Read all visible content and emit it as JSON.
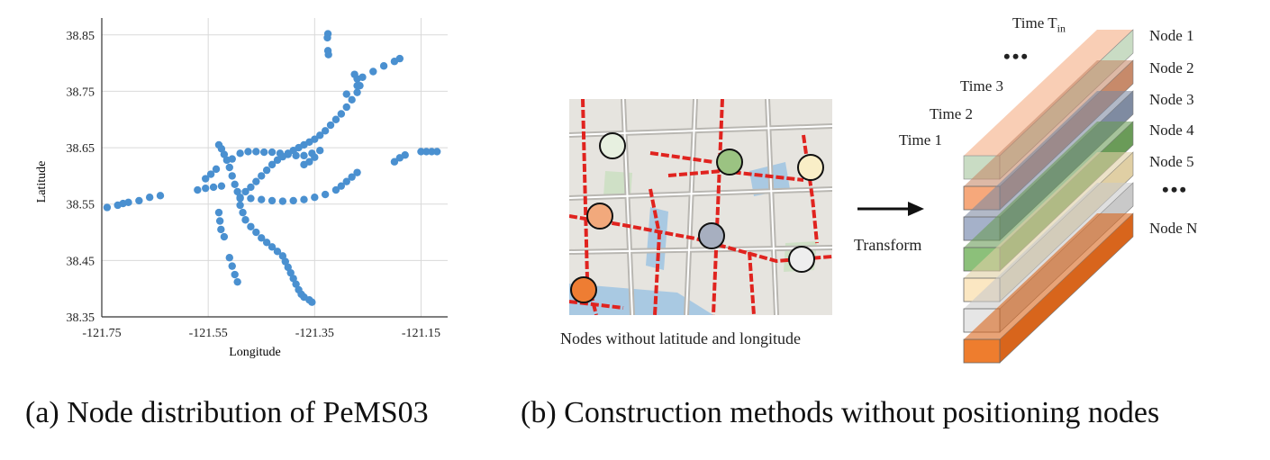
{
  "figure": {
    "caption_a": "(a) Node distribution of PeMS03",
    "caption_b": "(b) Construction methods without positioning nodes"
  },
  "chart_data": {
    "type": "scatter",
    "title": "",
    "xlabel": "Longitude",
    "ylabel": "Latitude",
    "xlim": [
      -121.75,
      -121.1
    ],
    "ylim": [
      38.35,
      38.88
    ],
    "xticks": [
      "-121.75",
      "-121.55",
      "-121.35",
      "-121.15"
    ],
    "xtick_values": [
      -121.75,
      -121.55,
      -121.35,
      -121.15
    ],
    "yticks": [
      "38.35",
      "38.45",
      "38.55",
      "38.65",
      "38.75",
      "38.85"
    ],
    "ytick_values": [
      38.35,
      38.45,
      38.55,
      38.65,
      38.75,
      38.85
    ],
    "grid": true,
    "color": "#4a90d0",
    "points": [
      [
        -121.74,
        38.544
      ],
      [
        -121.72,
        38.548
      ],
      [
        -121.71,
        38.551
      ],
      [
        -121.7,
        38.553
      ],
      [
        -121.68,
        38.556
      ],
      [
        -121.66,
        38.562
      ],
      [
        -121.64,
        38.565
      ],
      [
        -121.57,
        38.575
      ],
      [
        -121.555,
        38.578
      ],
      [
        -121.54,
        38.58
      ],
      [
        -121.525,
        38.582
      ],
      [
        -121.555,
        38.595
      ],
      [
        -121.545,
        38.603
      ],
      [
        -121.535,
        38.612
      ],
      [
        -121.53,
        38.655
      ],
      [
        -121.525,
        38.648
      ],
      [
        -121.52,
        38.638
      ],
      [
        -121.515,
        38.628
      ],
      [
        -121.51,
        38.615
      ],
      [
        -121.505,
        38.6
      ],
      [
        -121.5,
        38.585
      ],
      [
        -121.495,
        38.572
      ],
      [
        -121.49,
        38.56
      ],
      [
        -121.505,
        38.63
      ],
      [
        -121.49,
        38.64
      ],
      [
        -121.475,
        38.643
      ],
      [
        -121.46,
        38.643
      ],
      [
        -121.445,
        38.642
      ],
      [
        -121.43,
        38.642
      ],
      [
        -121.415,
        38.64
      ],
      [
        -121.4,
        38.638
      ],
      [
        -121.385,
        38.636
      ],
      [
        -121.37,
        38.636
      ],
      [
        -121.355,
        38.64
      ],
      [
        -121.34,
        38.645
      ],
      [
        -121.48,
        38.572
      ],
      [
        -121.47,
        38.58
      ],
      [
        -121.46,
        38.59
      ],
      [
        -121.45,
        38.6
      ],
      [
        -121.44,
        38.61
      ],
      [
        -121.43,
        38.62
      ],
      [
        -121.42,
        38.628
      ],
      [
        -121.41,
        38.634
      ],
      [
        -121.4,
        38.64
      ],
      [
        -121.39,
        38.645
      ],
      [
        -121.38,
        38.65
      ],
      [
        -121.37,
        38.655
      ],
      [
        -121.36,
        38.66
      ],
      [
        -121.35,
        38.665
      ],
      [
        -121.34,
        38.672
      ],
      [
        -121.33,
        38.68
      ],
      [
        -121.32,
        38.69
      ],
      [
        -121.31,
        38.7
      ],
      [
        -121.3,
        38.71
      ],
      [
        -121.29,
        38.722
      ],
      [
        -121.28,
        38.735
      ],
      [
        -121.27,
        38.748
      ],
      [
        -121.265,
        38.76
      ],
      [
        -121.27,
        38.772
      ],
      [
        -121.275,
        38.78
      ],
      [
        -121.325,
        38.852
      ],
      [
        -121.326,
        38.845
      ],
      [
        -121.325,
        38.822
      ],
      [
        -121.324,
        38.815
      ],
      [
        -121.26,
        38.775
      ],
      [
        -121.24,
        38.785
      ],
      [
        -121.22,
        38.795
      ],
      [
        -121.2,
        38.803
      ],
      [
        -121.19,
        38.808
      ],
      [
        -121.27,
        38.76
      ],
      [
        -121.29,
        38.745
      ],
      [
        -121.37,
        38.62
      ],
      [
        -121.36,
        38.625
      ],
      [
        -121.35,
        38.633
      ],
      [
        -121.49,
        38.562
      ],
      [
        -121.47,
        38.56
      ],
      [
        -121.45,
        38.558
      ],
      [
        -121.43,
        38.556
      ],
      [
        -121.41,
        38.555
      ],
      [
        -121.39,
        38.556
      ],
      [
        -121.37,
        38.558
      ],
      [
        -121.35,
        38.562
      ],
      [
        -121.33,
        38.567
      ],
      [
        -121.31,
        38.575
      ],
      [
        -121.3,
        38.582
      ],
      [
        -121.29,
        38.59
      ],
      [
        -121.28,
        38.598
      ],
      [
        -121.27,
        38.606
      ],
      [
        -121.2,
        38.625
      ],
      [
        -121.19,
        38.632
      ],
      [
        -121.18,
        38.637
      ],
      [
        -121.15,
        38.643
      ],
      [
        -121.14,
        38.643
      ],
      [
        -121.13,
        38.643
      ],
      [
        -121.12,
        38.643
      ],
      [
        -121.49,
        38.548
      ],
      [
        -121.485,
        38.535
      ],
      [
        -121.48,
        38.522
      ],
      [
        -121.47,
        38.51
      ],
      [
        -121.46,
        38.5
      ],
      [
        -121.45,
        38.49
      ],
      [
        -121.44,
        38.482
      ],
      [
        -121.43,
        38.474
      ],
      [
        -121.42,
        38.466
      ],
      [
        -121.41,
        38.458
      ],
      [
        -121.405,
        38.448
      ],
      [
        -121.4,
        38.438
      ],
      [
        -121.395,
        38.428
      ],
      [
        -121.39,
        38.418
      ],
      [
        -121.385,
        38.408
      ],
      [
        -121.38,
        38.398
      ],
      [
        -121.375,
        38.39
      ],
      [
        -121.37,
        38.385
      ],
      [
        -121.36,
        38.38
      ],
      [
        -121.355,
        38.376
      ],
      [
        -121.53,
        38.535
      ],
      [
        -121.528,
        38.52
      ],
      [
        -121.526,
        38.505
      ],
      [
        -121.52,
        38.492
      ],
      [
        -121.51,
        38.455
      ],
      [
        -121.505,
        38.44
      ],
      [
        -121.5,
        38.425
      ],
      [
        -121.495,
        38.412
      ]
    ]
  },
  "map": {
    "caption": "Nodes without latitude and longitude",
    "node_colors": [
      "#e7f0e0",
      "#9bc382",
      "#f9eec7",
      "#f2a97c",
      "#a7afc0",
      "#eeeeee",
      "#ee7d33"
    ]
  },
  "arrow": {
    "label": "Transform"
  },
  "stack": {
    "time_labels": [
      "Time 1",
      "Time 2",
      "Time 3",
      "•••",
      "Time T"
    ],
    "time_sub": "in",
    "node_labels": [
      "Node 1",
      "Node 2",
      "Node 3",
      "Node 4",
      "Node 5",
      "•••",
      "Node N"
    ],
    "layer_colors": {
      "front": [
        "#f6a87b",
        "#a5b1c9",
        "#8cc07a",
        "#fbe7c2",
        "#e6e6e6",
        "#ee7d2e"
      ],
      "top_first": "#c9dcc4",
      "side": [
        "#c78a6a",
        "#7f8ba1",
        "#6a9b58",
        "#e0cfa4",
        "#c9c9c9",
        "#d8651c"
      ]
    }
  }
}
